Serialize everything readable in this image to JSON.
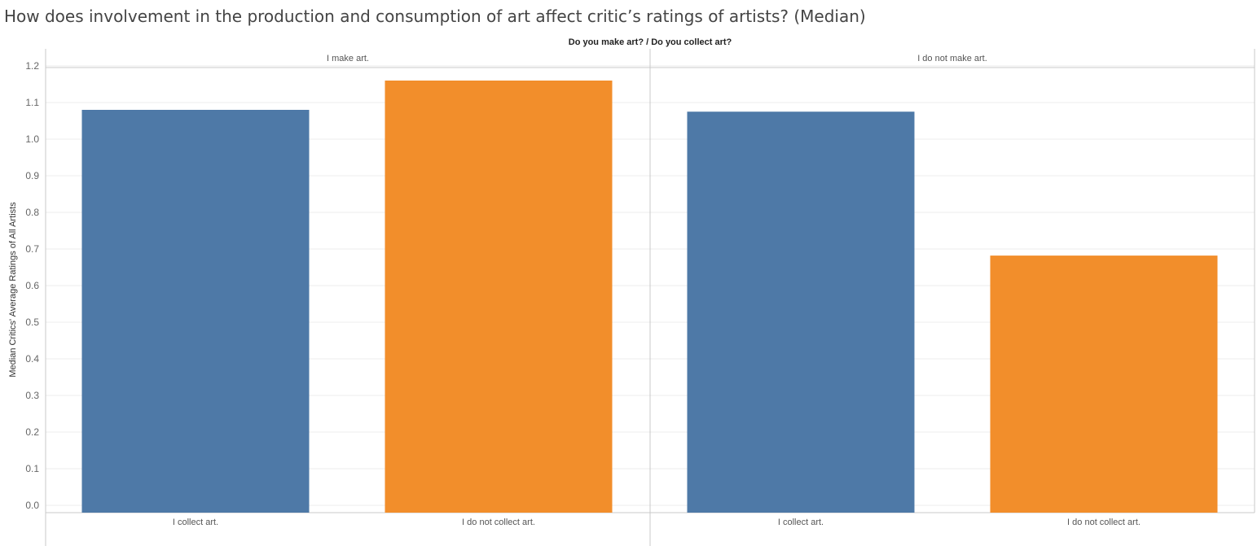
{
  "title": "How does involvement in the production and consumption of art affect critic’s ratings of artists? (Median)",
  "header": "Do you make art?  /  Do you collect art?",
  "colors": {
    "collect": "#4e79a7",
    "not_collect": "#f28e2b",
    "grid": "#ececec",
    "axis": "#c8c8c8"
  },
  "chart_data": {
    "type": "bar",
    "title": "How does involvement in the production and consumption of art affect critic’s ratings of artists? (Median)",
    "ylabel": "Median Critics' Average Ratings of All Artists",
    "ylim": [
      0,
      1.22
    ],
    "yticks": [
      "0.0",
      "0.1",
      "0.2",
      "0.3",
      "0.4",
      "0.5",
      "0.6",
      "0.7",
      "0.8",
      "0.9",
      "1.0",
      "1.1",
      "1.2"
    ],
    "grid": true,
    "panels": [
      {
        "label": "I make art.",
        "categories": [
          "I collect art.",
          "I do not collect art."
        ],
        "values": [
          1.08,
          1.16
        ]
      },
      {
        "label": "I do not make art.",
        "categories": [
          "I collect art.",
          "I do not collect art."
        ],
        "values": [
          1.075,
          0.682
        ]
      }
    ]
  }
}
